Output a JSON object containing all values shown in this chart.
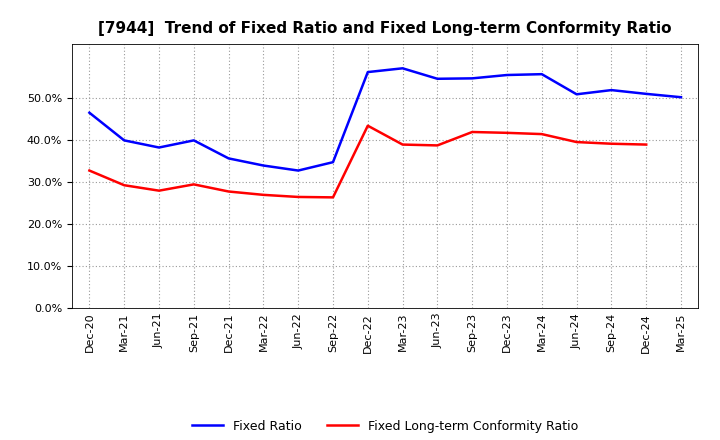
{
  "title": "[7944]  Trend of Fixed Ratio and Fixed Long-term Conformity Ratio",
  "x_labels": [
    "Dec-20",
    "Mar-21",
    "Jun-21",
    "Sep-21",
    "Dec-21",
    "Mar-22",
    "Jun-22",
    "Sep-22",
    "Dec-22",
    "Mar-23",
    "Jun-23",
    "Sep-23",
    "Dec-23",
    "Mar-24",
    "Jun-24",
    "Sep-24",
    "Dec-24",
    "Mar-25"
  ],
  "fixed_ratio": [
    0.466,
    0.4,
    0.383,
    0.4,
    0.357,
    0.34,
    0.328,
    0.348,
    0.563,
    0.572,
    0.547,
    0.548,
    0.556,
    0.558,
    0.51,
    0.52,
    0.511,
    0.503
  ],
  "fixed_lt_ratio": [
    0.328,
    0.293,
    0.28,
    0.295,
    0.278,
    0.27,
    0.265,
    0.264,
    0.435,
    0.39,
    0.388,
    0.42,
    0.418,
    0.415,
    0.396,
    0.392,
    0.39,
    null
  ],
  "fixed_ratio_color": "#0000FF",
  "fixed_lt_ratio_color": "#FF0000",
  "ylim": [
    0.0,
    0.63
  ],
  "yticks": [
    0.0,
    0.1,
    0.2,
    0.3,
    0.4,
    0.5
  ],
  "background_color": "#FFFFFF",
  "plot_bg_color": "#FFFFFF",
  "grid_color": "#999999",
  "legend_fixed_ratio": "Fixed Ratio",
  "legend_fixed_lt": "Fixed Long-term Conformity Ratio",
  "title_fontsize": 11,
  "tick_fontsize": 8,
  "legend_fontsize": 9,
  "line_width": 1.8
}
